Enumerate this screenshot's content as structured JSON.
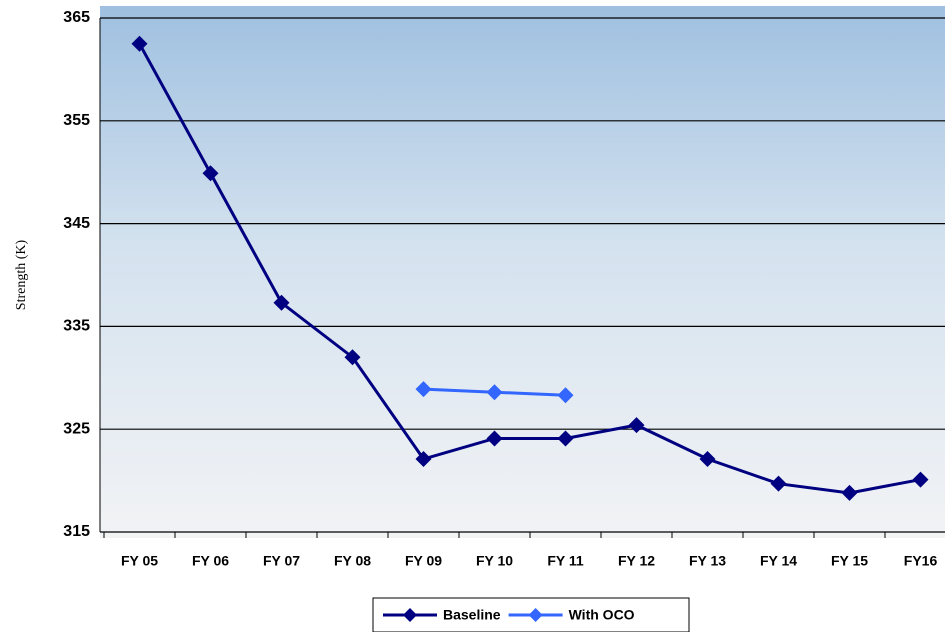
{
  "chart_data": {
    "type": "line",
    "y_label": "Strength (K)",
    "categories": [
      "FY 05",
      "FY 06",
      "FY 07",
      "FY 08",
      "FY 09",
      "FY 10",
      "FY 11",
      "FY 12",
      "FY 13",
      "FY 14",
      "FY 15",
      "FY16"
    ],
    "series": [
      {
        "name": "Baseline",
        "color": "#000080",
        "values": [
          362.5,
          349.9,
          337.3,
          332.0,
          322.1,
          324.1,
          324.1,
          325.4,
          322.1,
          319.7,
          318.8,
          320.1
        ]
      },
      {
        "name": "With OCO",
        "color": "#3366ff",
        "values": [
          null,
          null,
          null,
          null,
          328.9,
          328.6,
          328.3,
          null,
          null,
          null,
          null,
          null
        ]
      }
    ],
    "ylim": [
      315,
      365
    ],
    "yticks": [
      315,
      325,
      335,
      345,
      355,
      365
    ],
    "grid": true,
    "legend": "bottom"
  }
}
